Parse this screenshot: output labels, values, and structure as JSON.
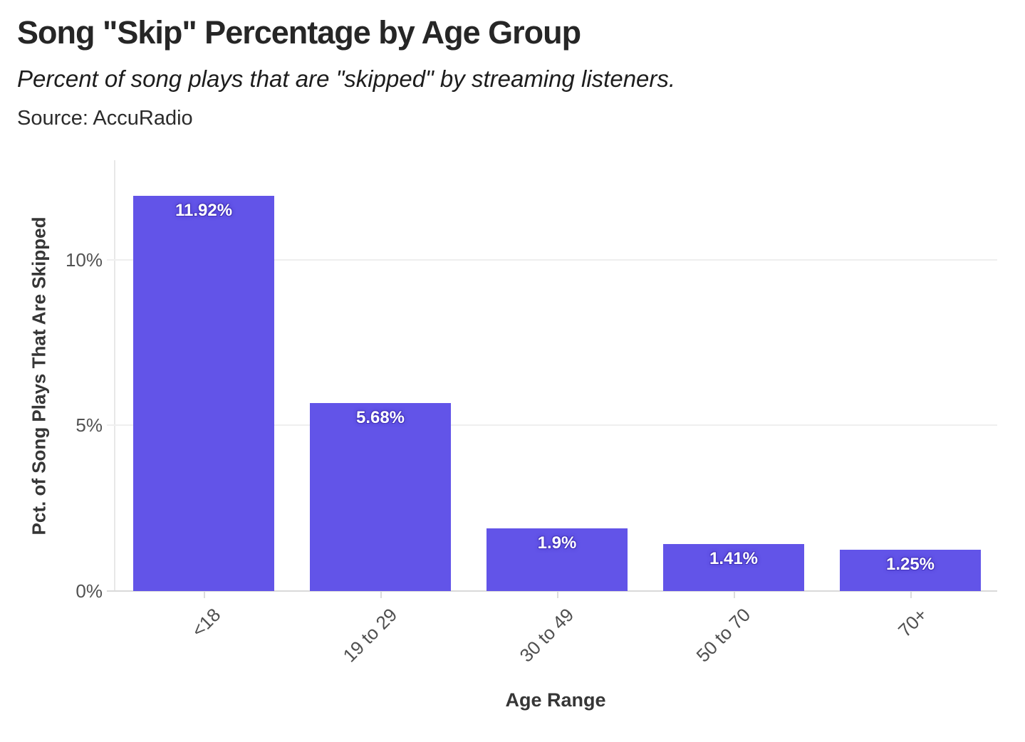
{
  "chart_data": {
    "type": "bar",
    "title": "Song \"Skip\" Percentage by Age Group",
    "subtitle": "Percent of song plays that are \"skipped\" by streaming listeners.",
    "source": "Source: AccuRadio",
    "xlabel": "Age Range",
    "ylabel": "Pct. of Song Plays That Are Skipped",
    "categories": [
      "<18",
      "19 to 29",
      "30 to 49",
      "50 to 70",
      "70+"
    ],
    "values": [
      11.92,
      5.68,
      1.9,
      1.41,
      1.25
    ],
    "value_labels": [
      "11.92%",
      "5.68%",
      "1.9%",
      "1.41%",
      "1.25%"
    ],
    "y_ticks": [
      "0%",
      "5%",
      "10%"
    ],
    "y_tick_values": [
      0,
      5,
      10
    ],
    "ylim": [
      0,
      13
    ],
    "grid": "horizontal",
    "legend": "none",
    "bar_color": "#6254e8",
    "value_label_color": "#ffffff",
    "background_color": "#ffffff"
  }
}
